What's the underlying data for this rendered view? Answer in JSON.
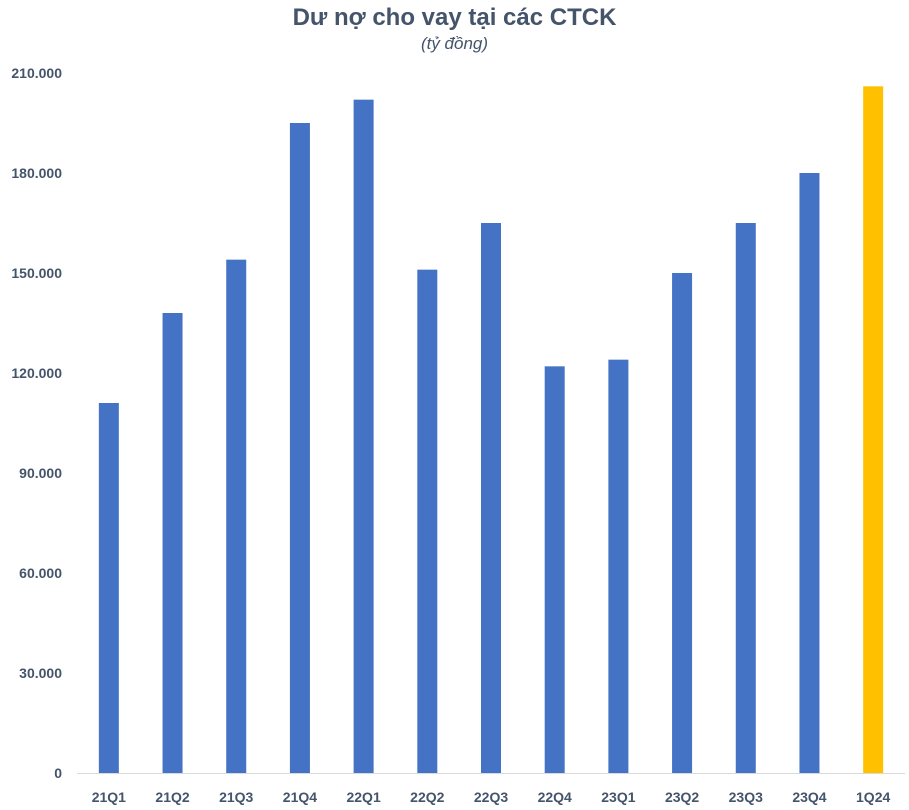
{
  "chart_data": {
    "type": "bar",
    "title": "Dư nợ cho vay tại các CTCK",
    "subtitle": "(tỷ đồng)",
    "categories": [
      "21Q1",
      "21Q2",
      "21Q3",
      "21Q4",
      "22Q1",
      "22Q2",
      "22Q3",
      "22Q4",
      "23Q1",
      "23Q2",
      "23Q3",
      "23Q4",
      "1Q24"
    ],
    "values": [
      111000,
      138000,
      154000,
      195000,
      202000,
      151000,
      165000,
      122000,
      124000,
      150000,
      165000,
      180000,
      206000
    ],
    "ylim": [
      0,
      210000
    ],
    "yticks": [
      0,
      30000,
      60000,
      90000,
      120000,
      150000,
      180000,
      210000
    ],
    "ytick_labels": [
      "0",
      "30.000",
      "60.000",
      "90.000",
      "120.000",
      "150.000",
      "180.000",
      "210.000"
    ],
    "grid": false,
    "colors": {
      "default": "#4472c4",
      "highlight": "#ffc000",
      "axis": "#d9d9d9",
      "text": "#44546a"
    },
    "highlight_index": 12
  }
}
